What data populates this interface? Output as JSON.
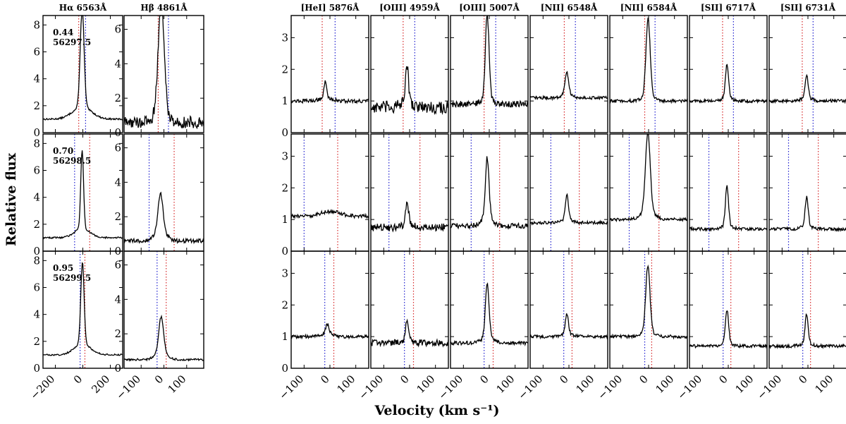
{
  "figure": {
    "xlabel": "Velocity (km s⁻¹)",
    "ylabel": "Relative flux"
  },
  "chart_data": {
    "type": "line",
    "rows": [
      {
        "phase": "0.44",
        "mjd": "56297.5"
      },
      {
        "phase": "0.70",
        "mjd": "56298.5"
      },
      {
        "phase": "0.95",
        "mjd": "56299.5"
      }
    ],
    "columns": [
      {
        "title": "Hα 6563Å",
        "xlim": [
          -290,
          290
        ],
        "xticks": [
          -200,
          0,
          200
        ],
        "xticklabels": [
          "−200",
          "0",
          "200"
        ],
        "ylim": [
          0,
          8.7
        ],
        "yticks": [
          0,
          2,
          4,
          6,
          8
        ]
      },
      {
        "title": "Hβ 4861Å",
        "xlim": [
          -175,
          175
        ],
        "xticks": [
          -100,
          0,
          100
        ],
        "xticklabels": [
          "−100",
          "0",
          "100"
        ],
        "ylim": [
          0,
          6.8
        ],
        "yticks": [
          0,
          2,
          4,
          6
        ]
      },
      {
        "title": "[HeI] 5876Å",
        "xlim": [
          -150,
          150
        ],
        "xticks": [
          -100,
          0,
          100
        ],
        "xticklabels": [
          "−100",
          "0",
          "100"
        ],
        "ylim": [
          0,
          3.7
        ],
        "yticks": [
          0,
          1,
          2,
          3
        ]
      },
      {
        "title": "[OIII] 4959Å",
        "xlim": [
          -150,
          150
        ],
        "xticks": [
          -100,
          0,
          100
        ],
        "xticklabels": [
          "−100",
          "0",
          "100"
        ],
        "ylim": [
          0,
          3.7
        ],
        "yticks": [
          0,
          1,
          2,
          3
        ]
      },
      {
        "title": "[OIII] 5007Å",
        "xlim": [
          -150,
          150
        ],
        "xticks": [
          -100,
          0,
          100
        ],
        "xticklabels": [
          "−100",
          "0",
          "100"
        ],
        "ylim": [
          0,
          3.7
        ],
        "yticks": [
          0,
          1,
          2,
          3
        ]
      },
      {
        "title": "[NII] 6548Å",
        "xlim": [
          -150,
          150
        ],
        "xticks": [
          -100,
          0,
          100
        ],
        "xticklabels": [
          "−100",
          "0",
          "100"
        ],
        "ylim": [
          0,
          3.7
        ],
        "yticks": [
          0,
          1,
          2,
          3
        ]
      },
      {
        "title": "[NII] 6584Å",
        "xlim": [
          -150,
          150
        ],
        "xticks": [
          -100,
          0,
          100
        ],
        "xticklabels": [
          "−100",
          "0",
          "100"
        ],
        "ylim": [
          0,
          3.7
        ],
        "yticks": [
          0,
          1,
          2,
          3
        ]
      },
      {
        "title": "[SII] 6717Å",
        "xlim": [
          -150,
          150
        ],
        "xticks": [
          -100,
          0,
          100
        ],
        "xticklabels": [
          "−100",
          "0",
          "100"
        ],
        "ylim": [
          0,
          3.7
        ],
        "yticks": [
          0,
          1,
          2,
          3
        ]
      },
      {
        "title": "[SII] 6731Å",
        "xlim": [
          -150,
          150
        ],
        "xticks": [
          -100,
          0,
          100
        ],
        "xticklabels": [
          "−100",
          "0",
          "100"
        ],
        "ylim": [
          0,
          3.7
        ],
        "yticks": [
          0,
          1,
          2,
          3
        ]
      }
    ],
    "colors": {
      "line": "#000000",
      "red_marker": "#d62728",
      "blue_marker": "#1f1fcf"
    },
    "panels": [
      {
        "row": 0,
        "col": 0,
        "base": 1.0,
        "peak": 8.4,
        "center": -5,
        "width": 14,
        "wing_amp": 0.9,
        "wing_width": 70,
        "noise": 0.06,
        "red": -30,
        "blue": 20
      },
      {
        "row": 0,
        "col": 1,
        "base": 0.6,
        "peak": 6.4,
        "center": -12,
        "width": 12,
        "wing_amp": 1.4,
        "wing_width": 22,
        "noise": 0.35,
        "red": -25,
        "blue": 20
      },
      {
        "row": 0,
        "col": 2,
        "base": 1.0,
        "peak": 1.5,
        "center": -18,
        "width": 5,
        "wing_amp": 0.1,
        "wing_width": 25,
        "noise": 0.06,
        "red": -30,
        "blue": 20
      },
      {
        "row": 0,
        "col": 3,
        "base": 0.8,
        "peak": 2.0,
        "center": -10,
        "width": 5,
        "wing_amp": 0.2,
        "wing_width": 20,
        "noise": 0.2,
        "red": -25,
        "blue": 20
      },
      {
        "row": 0,
        "col": 4,
        "base": 0.9,
        "peak": 3.55,
        "center": -8,
        "width": 7,
        "wing_amp": 0.2,
        "wing_width": 20,
        "noise": 0.1,
        "red": -20,
        "blue": 25
      },
      {
        "row": 0,
        "col": 5,
        "base": 1.1,
        "peak": 1.8,
        "center": -8,
        "width": 7,
        "wing_amp": 0.1,
        "wing_width": 20,
        "noise": 0.05,
        "red": -18,
        "blue": 25
      },
      {
        "row": 0,
        "col": 6,
        "base": 1.0,
        "peak": 3.4,
        "center": -2,
        "width": 8,
        "wing_amp": 0.2,
        "wing_width": 20,
        "noise": 0.05,
        "red": -15,
        "blue": 25
      },
      {
        "row": 0,
        "col": 7,
        "base": 1.0,
        "peak": 2.05,
        "center": -5,
        "width": 6,
        "wing_amp": 0.1,
        "wing_width": 20,
        "noise": 0.05,
        "red": -22,
        "blue": 20
      },
      {
        "row": 0,
        "col": 8,
        "base": 1.0,
        "peak": 1.7,
        "center": -5,
        "width": 6,
        "wing_amp": 0.1,
        "wing_width": 20,
        "noise": 0.05,
        "red": -22,
        "blue": 20
      },
      {
        "row": 1,
        "col": 0,
        "base": 1.0,
        "peak": 6.8,
        "center": -5,
        "width": 10,
        "wing_amp": 0.7,
        "wing_width": 55,
        "noise": 0.06,
        "red": 50,
        "blue": -60
      },
      {
        "row": 1,
        "col": 1,
        "base": 0.6,
        "peak": 2.8,
        "center": -15,
        "width": 10,
        "wing_amp": 0.6,
        "wing_width": 25,
        "noise": 0.12,
        "red": 45,
        "blue": -65
      },
      {
        "row": 1,
        "col": 2,
        "base": 1.1,
        "peak": 1.25,
        "center": 0,
        "width": 40,
        "wing_amp": 0.0,
        "wing_width": 20,
        "noise": 0.06,
        "red": 30,
        "blue": -100
      },
      {
        "row": 1,
        "col": 3,
        "base": 0.75,
        "peak": 1.4,
        "center": -10,
        "width": 6,
        "wing_amp": 0.1,
        "wing_width": 20,
        "noise": 0.12,
        "red": 40,
        "blue": -80
      },
      {
        "row": 1,
        "col": 4,
        "base": 0.8,
        "peak": 2.65,
        "center": -8,
        "width": 7,
        "wing_amp": 0.3,
        "wing_width": 20,
        "noise": 0.08,
        "red": 40,
        "blue": -70
      },
      {
        "row": 1,
        "col": 5,
        "base": 0.9,
        "peak": 1.7,
        "center": -8,
        "width": 6,
        "wing_amp": 0.1,
        "wing_width": 20,
        "noise": 0.05,
        "red": 40,
        "blue": -70
      },
      {
        "row": 1,
        "col": 6,
        "base": 1.0,
        "peak": 3.45,
        "center": -3,
        "width": 9,
        "wing_amp": 0.3,
        "wing_width": 25,
        "noise": 0.05,
        "red": 40,
        "blue": -75
      },
      {
        "row": 1,
        "col": 7,
        "base": 0.7,
        "peak": 1.95,
        "center": -5,
        "width": 6,
        "wing_amp": 0.1,
        "wing_width": 20,
        "noise": 0.05,
        "red": 40,
        "blue": -75
      },
      {
        "row": 1,
        "col": 8,
        "base": 0.7,
        "peak": 1.6,
        "center": -5,
        "width": 6,
        "wing_amp": 0.1,
        "wing_width": 20,
        "noise": 0.05,
        "red": 40,
        "blue": -75
      },
      {
        "row": 2,
        "col": 0,
        "base": 1.0,
        "peak": 7.1,
        "center": -3,
        "width": 12,
        "wing_amp": 0.8,
        "wing_width": 60,
        "noise": 0.06,
        "red": 15,
        "blue": -20
      },
      {
        "row": 2,
        "col": 1,
        "base": 0.5,
        "peak": 2.5,
        "center": -12,
        "width": 10,
        "wing_amp": 0.5,
        "wing_width": 25,
        "noise": 0.06,
        "red": 10,
        "blue": -30
      },
      {
        "row": 2,
        "col": 2,
        "base": 1.0,
        "peak": 1.3,
        "center": -10,
        "width": 6,
        "wing_amp": 0.1,
        "wing_width": 20,
        "noise": 0.05,
        "red": 15,
        "blue": -20
      },
      {
        "row": 2,
        "col": 3,
        "base": 0.8,
        "peak": 1.45,
        "center": -10,
        "width": 5,
        "wing_amp": 0.1,
        "wing_width": 20,
        "noise": 0.1,
        "red": 15,
        "blue": -20
      },
      {
        "row": 2,
        "col": 4,
        "base": 0.8,
        "peak": 2.45,
        "center": -8,
        "width": 7,
        "wing_amp": 0.2,
        "wing_width": 20,
        "noise": 0.06,
        "red": 15,
        "blue": -20
      },
      {
        "row": 2,
        "col": 5,
        "base": 1.0,
        "peak": 1.6,
        "center": -8,
        "width": 6,
        "wing_amp": 0.1,
        "wing_width": 20,
        "noise": 0.05,
        "red": 12,
        "blue": -20
      },
      {
        "row": 2,
        "col": 6,
        "base": 1.0,
        "peak": 3.05,
        "center": -3,
        "width": 8,
        "wing_amp": 0.2,
        "wing_width": 20,
        "noise": 0.05,
        "red": 12,
        "blue": -15
      },
      {
        "row": 2,
        "col": 7,
        "base": 0.7,
        "peak": 1.75,
        "center": -5,
        "width": 6,
        "wing_amp": 0.1,
        "wing_width": 20,
        "noise": 0.05,
        "red": 10,
        "blue": -20
      },
      {
        "row": 2,
        "col": 8,
        "base": 0.7,
        "peak": 1.6,
        "center": -5,
        "width": 6,
        "wing_amp": 0.1,
        "wing_width": 20,
        "noise": 0.05,
        "red": 10,
        "blue": -20
      }
    ]
  }
}
